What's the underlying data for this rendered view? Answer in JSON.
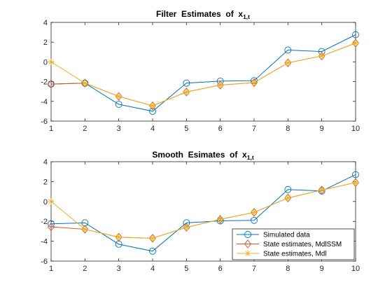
{
  "figure": {
    "background": "#ffffff",
    "colors": {
      "series1": "#0072BD",
      "series2": "#D95319",
      "series3": "#EDB120"
    }
  },
  "chart_data": [
    {
      "type": "line",
      "title_prefix": "Filter  Estimates  of  ",
      "title_var": "x",
      "title_sub": "1,t",
      "x": [
        1,
        2,
        3,
        4,
        5,
        6,
        7,
        8,
        9,
        10
      ],
      "xlim": [
        1,
        10
      ],
      "ylim": [
        -6,
        4
      ],
      "xticks": [
        1,
        2,
        3,
        4,
        5,
        6,
        7,
        8,
        9,
        10
      ],
      "yticks": [
        -6,
        -4,
        -2,
        0,
        2,
        4
      ],
      "legend": null,
      "series": [
        {
          "key": "sim",
          "marker": "circle",
          "color": "#0072BD",
          "values": [
            -2.25,
            -2.15,
            -4.3,
            -5.0,
            -2.15,
            -1.95,
            -1.9,
            1.2,
            1.05,
            2.75
          ]
        },
        {
          "key": "ssm",
          "marker": "diamond",
          "color": "#D95319",
          "values": [
            -2.25,
            -2.15,
            -3.5,
            -4.45,
            -3.05,
            -2.35,
            -2.1,
            -0.1,
            0.6,
            1.9
          ]
        },
        {
          "key": "mdl",
          "marker": "star",
          "color": "#EDB120",
          "values": [
            0.0,
            -2.15,
            -3.5,
            -4.45,
            -3.05,
            -2.35,
            -2.1,
            -0.1,
            0.6,
            1.9
          ]
        }
      ]
    },
    {
      "type": "line",
      "title_prefix": "Smooth  Esimates  of  ",
      "title_var": "x",
      "title_sub": "1,t",
      "x": [
        1,
        2,
        3,
        4,
        5,
        6,
        7,
        8,
        9,
        10
      ],
      "xlim": [
        1,
        10
      ],
      "ylim": [
        -6,
        4
      ],
      "xticks": [
        1,
        2,
        3,
        4,
        5,
        6,
        7,
        8,
        9,
        10
      ],
      "yticks": [
        -6,
        -4,
        -2,
        0,
        2,
        4
      ],
      "legend": {
        "placement": "bottom-right",
        "entries": [
          "Simulated data",
          "State estimates, MdlSSM",
          "State estimates, Mdl"
        ]
      },
      "series": [
        {
          "key": "sim",
          "marker": "circle",
          "color": "#0072BD",
          "values": [
            -2.25,
            -2.15,
            -4.3,
            -5.0,
            -2.15,
            -1.95,
            -1.9,
            1.2,
            1.05,
            2.7
          ]
        },
        {
          "key": "ssm",
          "marker": "diamond",
          "color": "#D95319",
          "values": [
            -2.55,
            -2.8,
            -3.6,
            -3.7,
            -2.6,
            -1.8,
            -1.1,
            0.35,
            1.15,
            1.9
          ]
        },
        {
          "key": "mdl",
          "marker": "star",
          "color": "#EDB120",
          "values": [
            0.0,
            -2.8,
            -3.6,
            -3.7,
            -2.6,
            -1.8,
            -1.1,
            0.35,
            1.15,
            1.9
          ]
        }
      ]
    }
  ]
}
